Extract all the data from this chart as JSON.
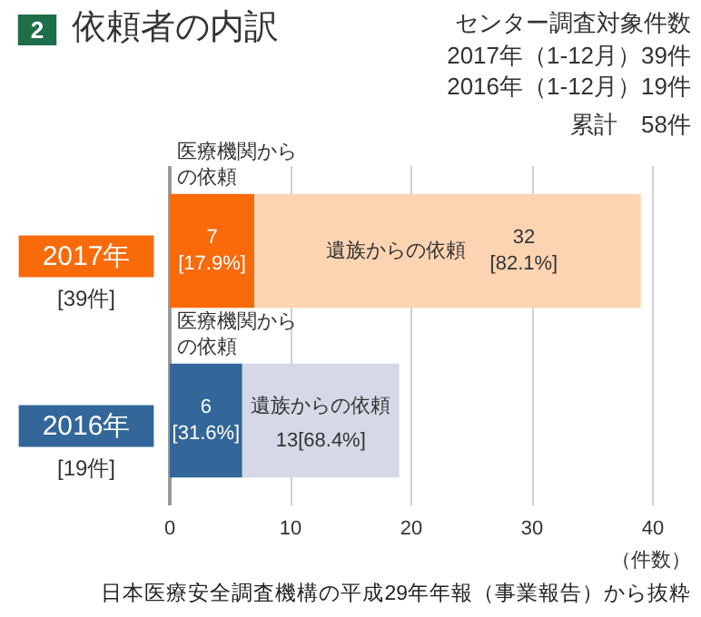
{
  "chart_data": {
    "type": "bar",
    "orientation": "horizontal",
    "stacked": true,
    "title": "依頼者の内訳",
    "xlabel": "（件数）",
    "categories": [
      "2017年",
      "2016年"
    ],
    "series": [
      {
        "name": "医療機関からの依頼",
        "colors": [
          "#f86a0a",
          "#336699"
        ],
        "values": [
          7,
          6
        ],
        "value_labels": [
          "7\n[17.9%]",
          "6\n[31.6%]"
        ]
      },
      {
        "name": "遺族からの依頼",
        "colors": [
          "#fdd4b2",
          "#d5d8e6"
        ],
        "values": [
          32,
          13
        ],
        "value_labels": [
          "32\n[82.1%]",
          "13[68.4%]"
        ]
      }
    ],
    "totals": [
      "[39件]",
      "[19件]"
    ],
    "xlim": [
      0,
      40
    ],
    "xticks": [
      0,
      10,
      20,
      30,
      40
    ],
    "grid": "x",
    "annotations": [
      "2",
      "センター調査対象件数",
      "2017年（1-12月）39件",
      "2016年（1-12月）19件",
      "累計　58件",
      "日本医療安全調査機構の平成29年年報（事業報告）から抜粋"
    ]
  }
}
